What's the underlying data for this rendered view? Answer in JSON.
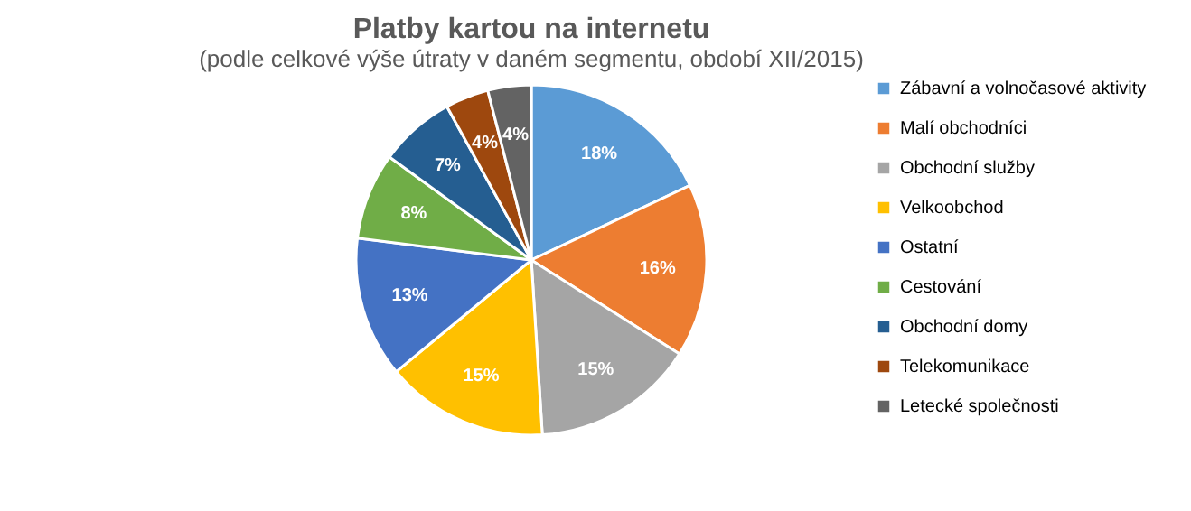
{
  "chart_data": {
    "type": "pie",
    "title": "Platby kartou na internetu",
    "subtitle": "(podle celkové výše útraty v daném segmentu, období XII/2015)",
    "categories": [
      "Zábavní a volnočasové aktivity",
      "Malí obchodníci",
      "Obchodní služby",
      "Velkoobchod",
      "Ostatní",
      "Cestování",
      "Obchodní domy",
      "Telekomunikace",
      "Letecké společnosti"
    ],
    "values": [
      18,
      16,
      15,
      15,
      13,
      8,
      7,
      4,
      4
    ],
    "value_labels": [
      "18%",
      "16%",
      "15%",
      "15%",
      "13%",
      "8%",
      "7%",
      "4%",
      "4%"
    ],
    "colors": [
      "#5b9bd5",
      "#ed7d31",
      "#a5a5a5",
      "#ffc000",
      "#4472c4",
      "#70ad47",
      "#255e91",
      "#9e480e",
      "#636363"
    ],
    "legend": "right"
  }
}
